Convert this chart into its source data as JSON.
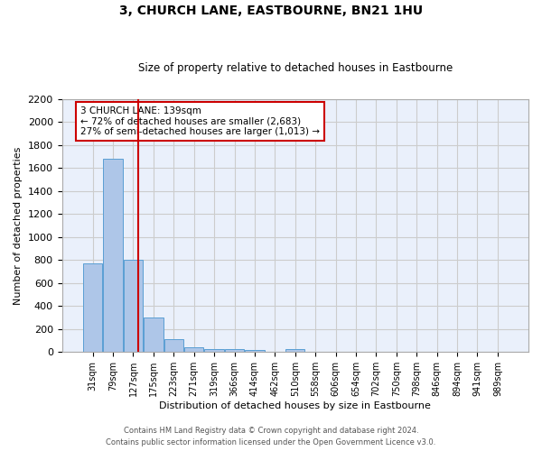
{
  "title": "3, CHURCH LANE, EASTBOURNE, BN21 1HU",
  "subtitle": "Size of property relative to detached houses in Eastbourne",
  "xlabel": "Distribution of detached houses by size in Eastbourne",
  "ylabel": "Number of detached properties",
  "footnote1": "Contains HM Land Registry data © Crown copyright and database right 2024.",
  "footnote2": "Contains public sector information licensed under the Open Government Licence v3.0.",
  "bar_labels": [
    "31sqm",
    "79sqm",
    "127sqm",
    "175sqm",
    "223sqm",
    "271sqm",
    "319sqm",
    "366sqm",
    "414sqm",
    "462sqm",
    "510sqm",
    "558sqm",
    "606sqm",
    "654sqm",
    "702sqm",
    "750sqm",
    "798sqm",
    "846sqm",
    "894sqm",
    "941sqm",
    "989sqm"
  ],
  "bar_values": [
    770,
    1680,
    800,
    300,
    110,
    40,
    28,
    25,
    20,
    0,
    25,
    0,
    0,
    0,
    0,
    0,
    0,
    0,
    0,
    0,
    0
  ],
  "bar_color": "#aec6e8",
  "bar_edge_color": "#5a9fd4",
  "grid_color": "#cccccc",
  "bg_color": "#eaf0fb",
  "annotation_text": "3 CHURCH LANE: 139sqm\n← 72% of detached houses are smaller (2,683)\n27% of semi-detached houses are larger (1,013) →",
  "annotation_box_edge": "#cc0000",
  "vline_color": "#cc0000",
  "ylim": [
    0,
    2200
  ],
  "yticks": [
    0,
    200,
    400,
    600,
    800,
    1000,
    1200,
    1400,
    1600,
    1800,
    2000,
    2200
  ],
  "redline_index": 2.25
}
